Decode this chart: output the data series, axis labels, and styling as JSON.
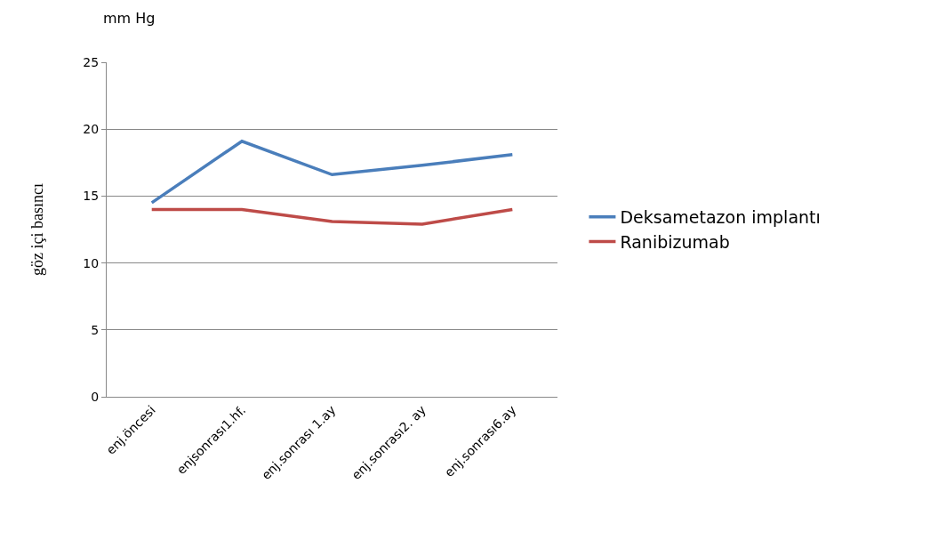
{
  "chart_data": {
    "type": "line",
    "categories": [
      "enj.öncesi",
      "enjsonrası1.hf.",
      "enj.sonrası 1.ay",
      "enj.sonrası2. ay",
      "enj.sonrası6.ay"
    ],
    "series": [
      {
        "name": "Deksametazon implantı",
        "color": "#4a7ebb",
        "values": [
          14.5,
          19.1,
          16.6,
          17.3,
          18.1
        ]
      },
      {
        "name": "Ranibizumab",
        "color": "#be4b48",
        "values": [
          14.0,
          14.0,
          13.1,
          12.9,
          14.0
        ]
      }
    ],
    "ylabel": "göz içi basıncı",
    "annotations": [
      "mm Hg"
    ],
    "ylim": [
      0,
      25
    ],
    "yticks": [
      0,
      5,
      10,
      15,
      20,
      25
    ],
    "grid": "y",
    "legend": "right",
    "marker": "none",
    "line_style": "solid"
  }
}
